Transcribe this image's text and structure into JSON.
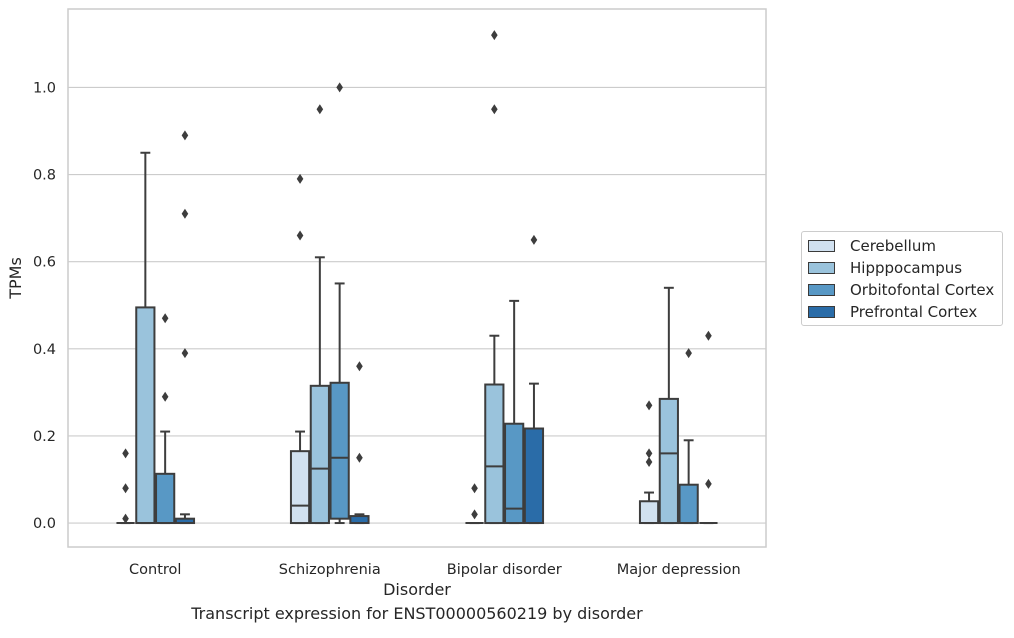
{
  "chart_data": {
    "type": "box",
    "caption": "Transcript expression for ENST00000560219 by disorder",
    "xlabel": "Disorder",
    "ylabel": "TPMs",
    "ylim": [
      -0.055,
      1.18
    ],
    "yticks": [
      0.0,
      0.2,
      0.4,
      0.6,
      0.8,
      1.0
    ],
    "ytick_labels": [
      "0.0",
      "0.2",
      "0.4",
      "0.6",
      "0.8",
      "1.0"
    ],
    "grid": "horizontal",
    "legend_position": "right",
    "categories": [
      "Control",
      "Schizophrenia",
      "Bipolar disorder",
      "Major depression"
    ],
    "series": [
      {
        "name": "Cerebellum",
        "color": "#d1e1f0",
        "boxes": [
          {
            "q1": 0.0,
            "median": 0.0,
            "q3": 0.0,
            "whislo": 0.0,
            "whishi": 0.0,
            "fliers": [
              0.01,
              0.08,
              0.16
            ]
          },
          {
            "q1": 0.0,
            "median": 0.04,
            "q3": 0.165,
            "whislo": 0.0,
            "whishi": 0.21,
            "fliers": [
              0.66,
              0.79
            ]
          },
          {
            "q1": 0.0,
            "median": 0.0,
            "q3": 0.0,
            "whislo": 0.0,
            "whishi": 0.0,
            "fliers": [
              0.02,
              0.08
            ]
          },
          {
            "q1": 0.0,
            "median": 0.0,
            "q3": 0.05,
            "whislo": 0.0,
            "whishi": 0.07,
            "fliers": [
              0.14,
              0.16,
              0.27
            ]
          }
        ]
      },
      {
        "name": "Hipppocampus",
        "color": "#9ac3dc",
        "boxes": [
          {
            "q1": 0.0,
            "median": 0.0,
            "q3": 0.495,
            "whislo": 0.0,
            "whishi": 0.85,
            "fliers": []
          },
          {
            "q1": 0.0,
            "median": 0.125,
            "q3": 0.315,
            "whislo": 0.0,
            "whishi": 0.61,
            "fliers": [
              0.95
            ]
          },
          {
            "q1": 0.0,
            "median": 0.13,
            "q3": 0.318,
            "whislo": 0.0,
            "whishi": 0.43,
            "fliers": [
              0.95,
              1.12
            ]
          },
          {
            "q1": 0.0,
            "median": 0.16,
            "q3": 0.285,
            "whislo": 0.0,
            "whishi": 0.54,
            "fliers": []
          }
        ]
      },
      {
        "name": "Orbitofontal Cortex",
        "color": "#5898c5",
        "boxes": [
          {
            "q1": 0.0,
            "median": 0.0,
            "q3": 0.113,
            "whislo": 0.0,
            "whishi": 0.21,
            "fliers": [
              0.29,
              0.47
            ]
          },
          {
            "q1": 0.01,
            "median": 0.15,
            "q3": 0.322,
            "whislo": 0.0,
            "whishi": 0.55,
            "fliers": [
              1.0
            ]
          },
          {
            "q1": 0.0,
            "median": 0.033,
            "q3": 0.228,
            "whislo": 0.0,
            "whishi": 0.51,
            "fliers": []
          },
          {
            "q1": 0.0,
            "median": 0.0,
            "q3": 0.088,
            "whislo": 0.0,
            "whishi": 0.19,
            "fliers": [
              0.39
            ]
          }
        ]
      },
      {
        "name": "Prefrontal Cortex",
        "color": "#2a6ca8",
        "boxes": [
          {
            "q1": 0.0,
            "median": 0.0,
            "q3": 0.01,
            "whislo": 0.0,
            "whishi": 0.02,
            "fliers": [
              0.39,
              0.71,
              0.89
            ]
          },
          {
            "q1": 0.0,
            "median": 0.0,
            "q3": 0.016,
            "whislo": 0.0,
            "whishi": 0.02,
            "fliers": [
              0.15,
              0.36
            ]
          },
          {
            "q1": 0.0,
            "median": 0.0,
            "q3": 0.217,
            "whislo": 0.0,
            "whishi": 0.32,
            "fliers": [
              0.65
            ]
          },
          {
            "q1": 0.0,
            "median": 0.0,
            "q3": 0.0,
            "whislo": 0.0,
            "whishi": 0.0,
            "fliers": [
              0.09,
              0.43
            ]
          }
        ]
      }
    ]
  }
}
